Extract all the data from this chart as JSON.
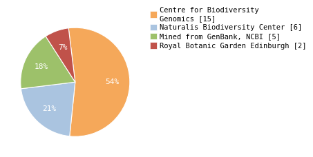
{
  "labels": [
    "Centre for Biodiversity\nGenomics [15]",
    "Naturalis Biodiversity Center [6]",
    "Mined from GenBank, NCBI [5]",
    "Royal Botanic Garden Edinburgh [2]"
  ],
  "values": [
    15,
    6,
    5,
    2
  ],
  "colors": [
    "#F5A85A",
    "#AAC4E0",
    "#9DC16A",
    "#C0524A"
  ],
  "background_color": "#ffffff",
  "pct_fontsize": 8,
  "legend_fontsize": 7.5,
  "startangle": 97
}
